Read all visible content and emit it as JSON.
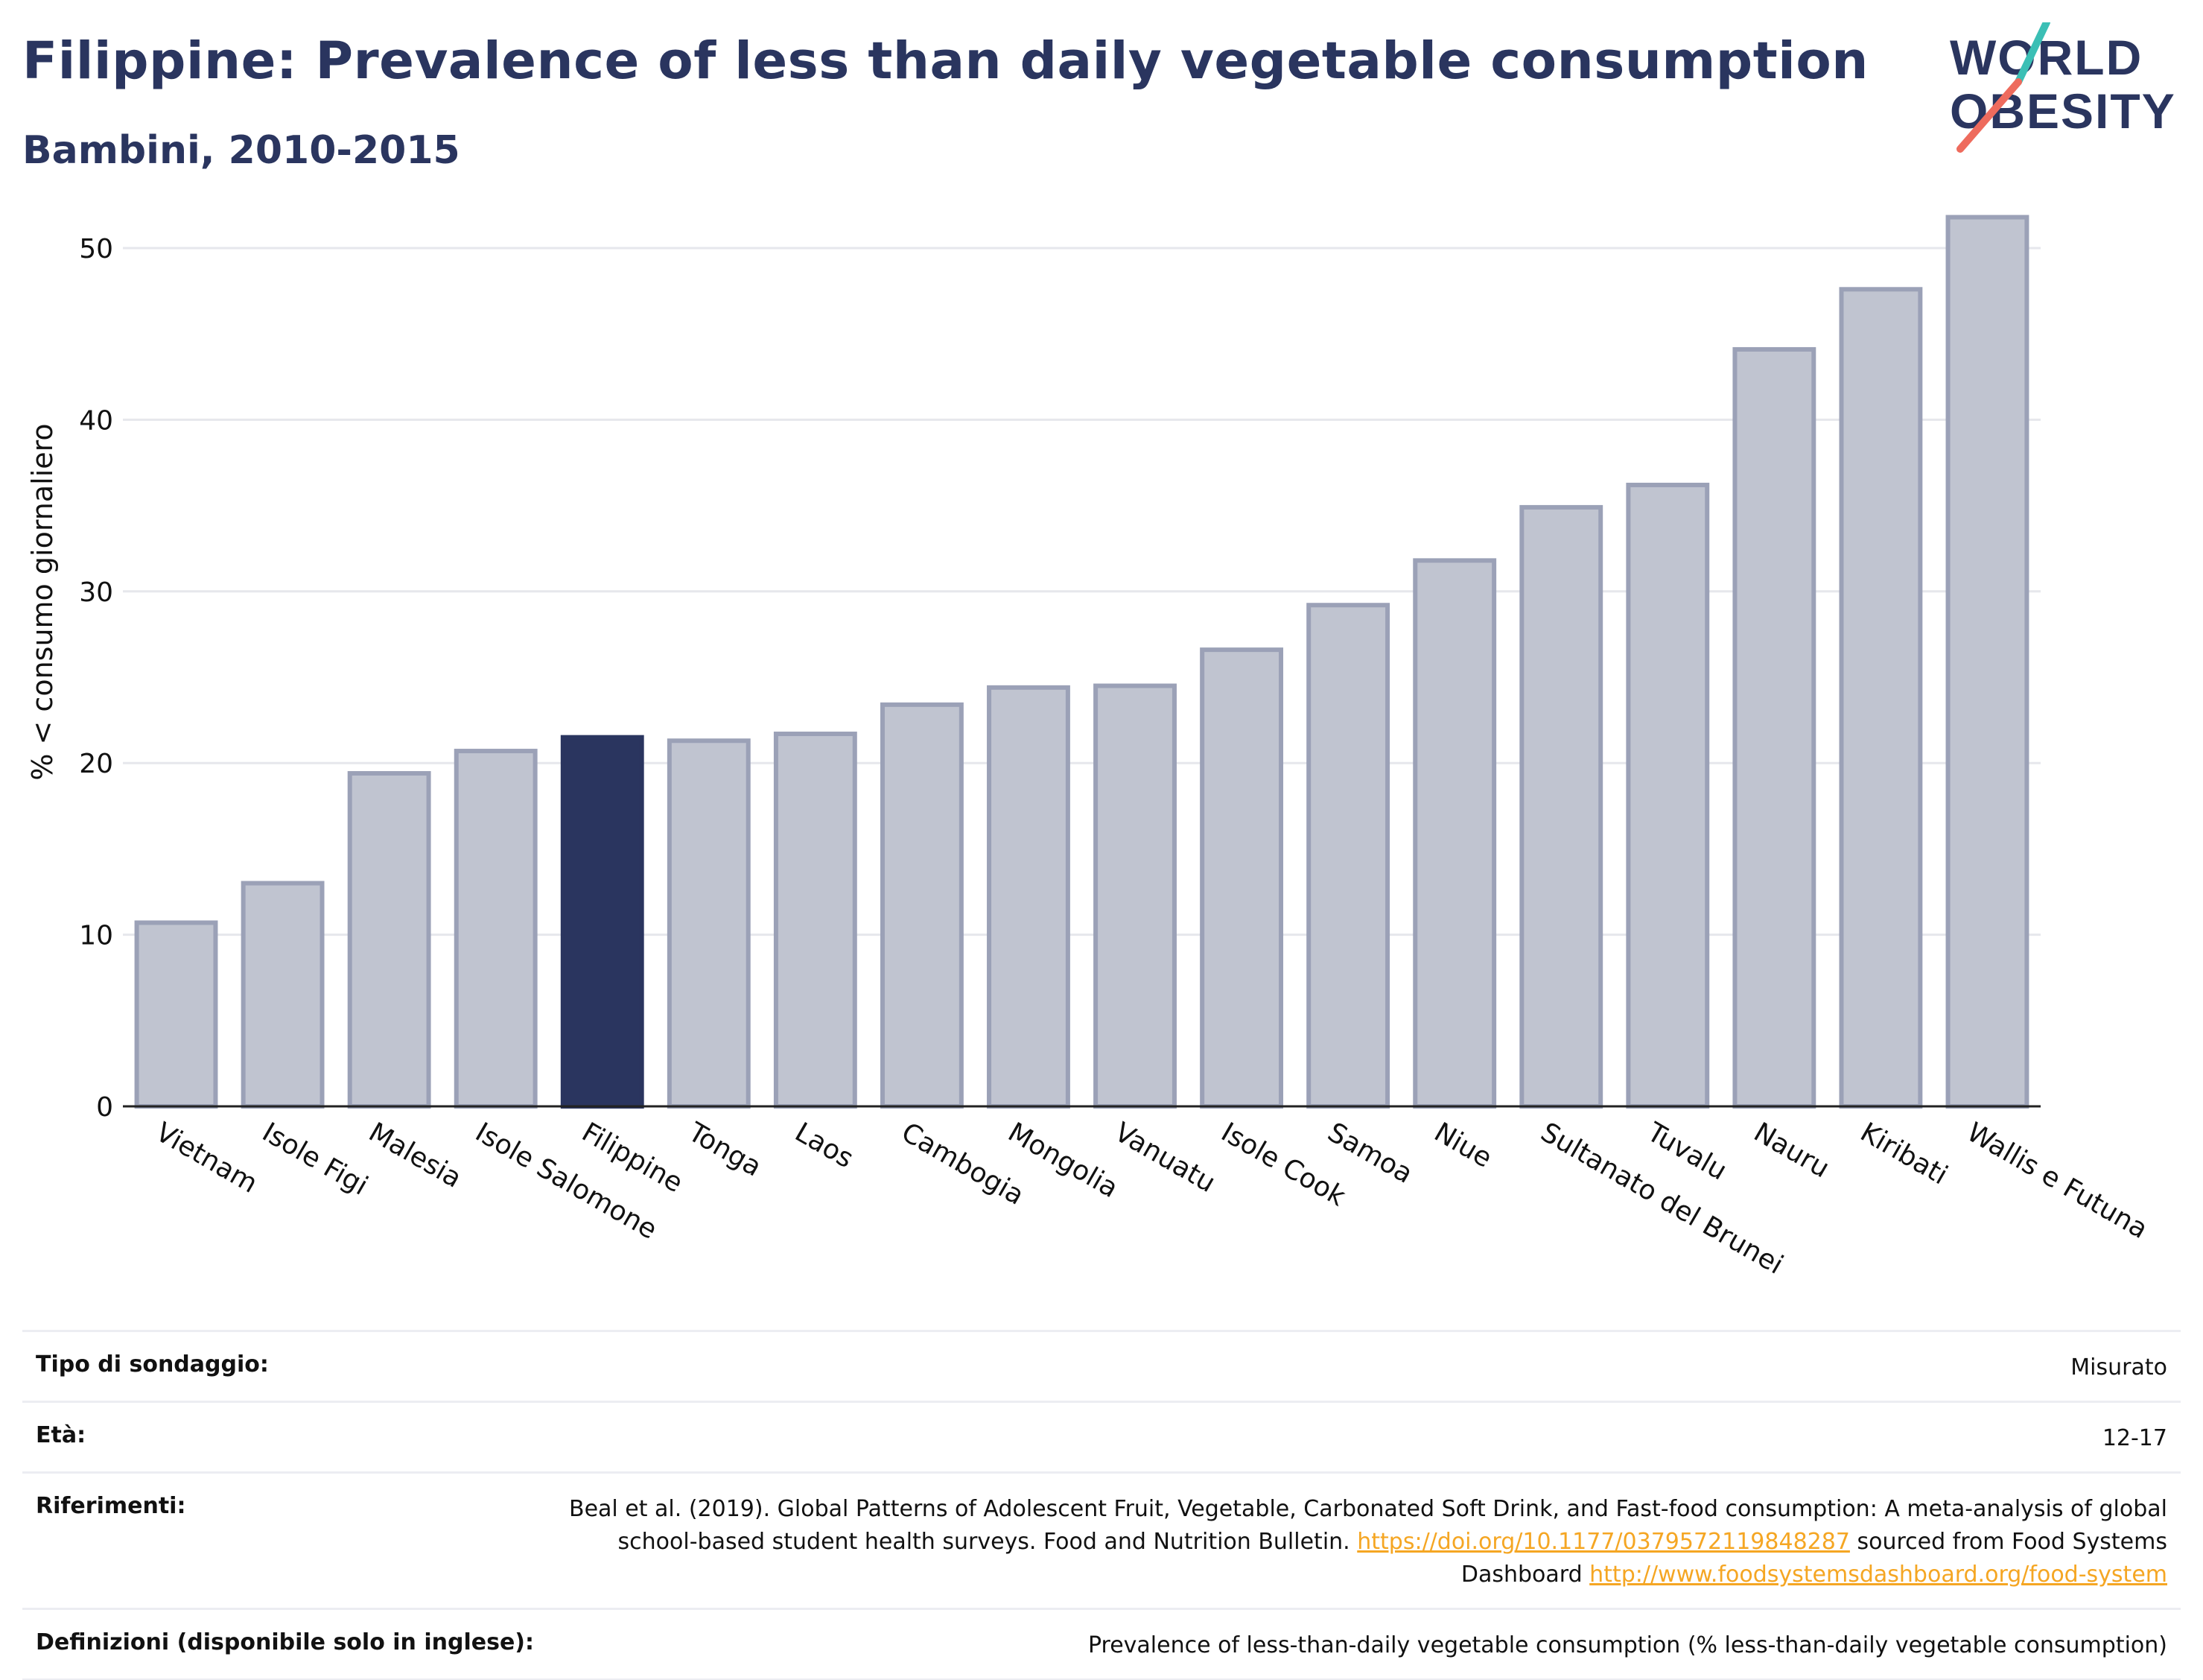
{
  "title": "Filippine: Prevalence of less than daily vegetable consumption",
  "subtitle": "Bambini, 2010-2015",
  "logo": {
    "line1": "WORLD",
    "line2": "OBESITY"
  },
  "colors": {
    "highlight": "#2a355f",
    "bar": "#c0c4d0",
    "bar_border": "#9ba1b7",
    "title": "#2a355f",
    "link": "#f5a623"
  },
  "chart_data": {
    "type": "bar",
    "categories": [
      "Vietnam",
      "Isole Figi",
      "Malesia",
      "Isole Salomone",
      "Filippine",
      "Tonga",
      "Laos",
      "Cambogia",
      "Mongolia",
      "Vanuatu",
      "Isole Cook",
      "Samoa",
      "Niue",
      "Sultanato del Brunei",
      "Tuvalu",
      "Nauru",
      "Kiribati",
      "Wallis e Futuna"
    ],
    "values": [
      10.7,
      13.0,
      19.4,
      20.7,
      21.5,
      21.3,
      21.7,
      23.4,
      24.4,
      24.5,
      26.6,
      29.2,
      31.8,
      34.9,
      36.2,
      44.1,
      47.6,
      51.8
    ],
    "highlight": "Filippine",
    "ylabel": "% < consumo giornaliero",
    "xlabel": "",
    "ylim": [
      0,
      55
    ],
    "yticks": [
      0,
      10,
      20,
      30,
      40,
      50
    ],
    "grid": true
  },
  "info": {
    "survey_label": "Tipo di sondaggio:",
    "survey_value": "Misurato",
    "age_label": "Età:",
    "age_value": "12-17",
    "ref_label": "Riferimenti:",
    "ref_text_1": "Beal et al. (2019). Global Patterns of Adolescent Fruit, Vegetable, Carbonated Soft Drink, and Fast-food consumption: A meta-analysis of global school-based student health surveys. Food and Nutrition Bulletin. ",
    "ref_link_1": "https://doi.org/10.1177/0379572119848287",
    "ref_text_2": " sourced from Food Systems Dashboard ",
    "ref_link_2": "http://www.foodsystemsdashboard.org/food-system",
    "def_label": "Definizioni (disponibile solo in inglese):",
    "def_value": "Prevalence of less-than-daily vegetable consumption (% less-than-daily vegetable consumption)"
  }
}
